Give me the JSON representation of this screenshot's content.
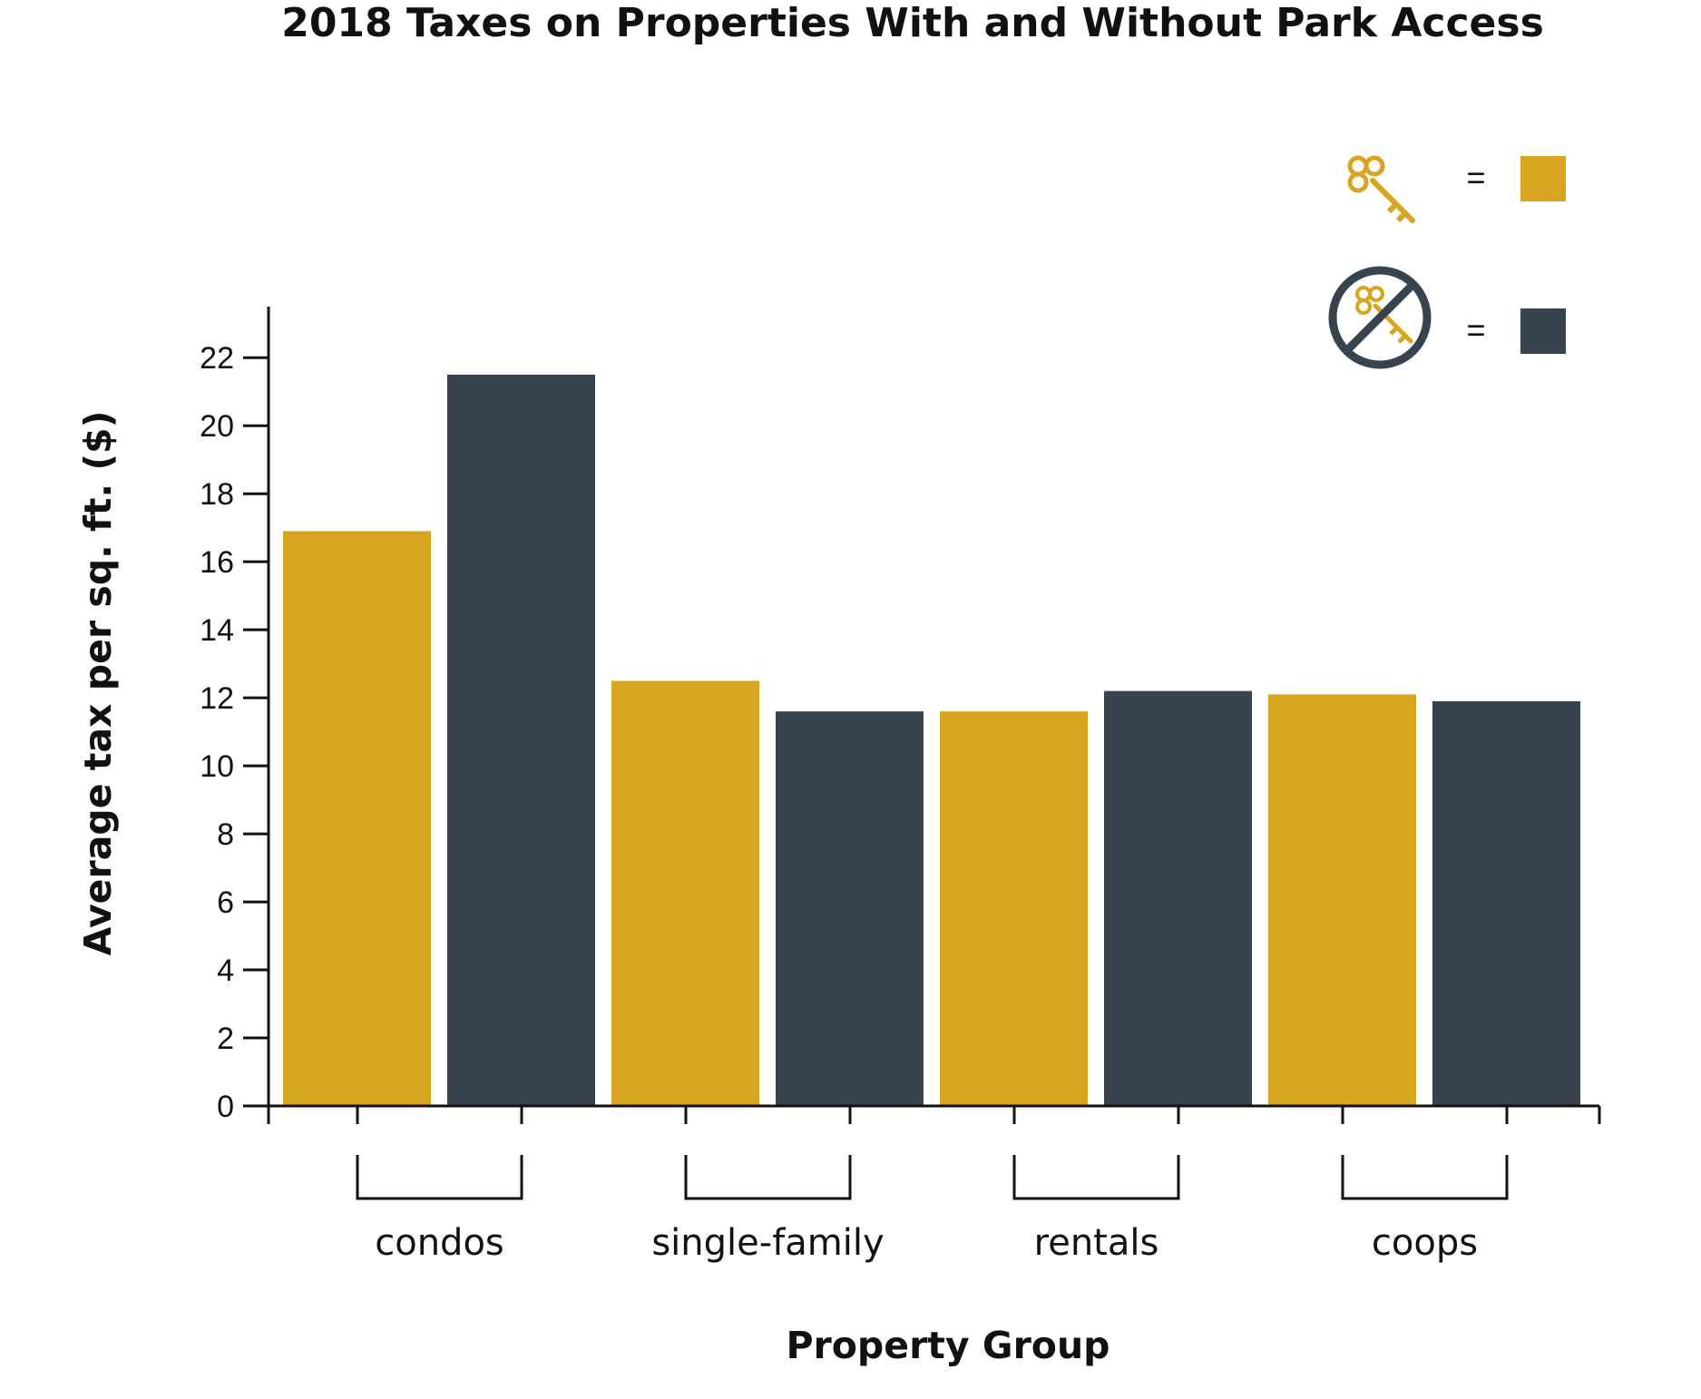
{
  "chart_data": {
    "type": "bar",
    "title": "2018 Taxes on Properties With and Without Park Access",
    "xlabel": "Property Group",
    "ylabel": "Average tax per sq. ft. ($)",
    "categories": [
      "condos",
      "single-family",
      "rentals",
      "coops"
    ],
    "series": [
      {
        "color": "#D8A521",
        "icon": "key-icon",
        "values": [
          16.9,
          12.5,
          11.6,
          12.1
        ]
      },
      {
        "color": "#37444F",
        "icon": "no-key-icon",
        "values": [
          21.5,
          11.6,
          12.2,
          11.9
        ]
      }
    ],
    "ylim": [
      0,
      23.5
    ],
    "yticks": [
      0,
      2,
      4,
      6,
      8,
      10,
      12,
      14,
      16,
      18,
      20,
      22
    ],
    "grid": false,
    "legend_placement": "top-right",
    "legend_equals": "="
  }
}
